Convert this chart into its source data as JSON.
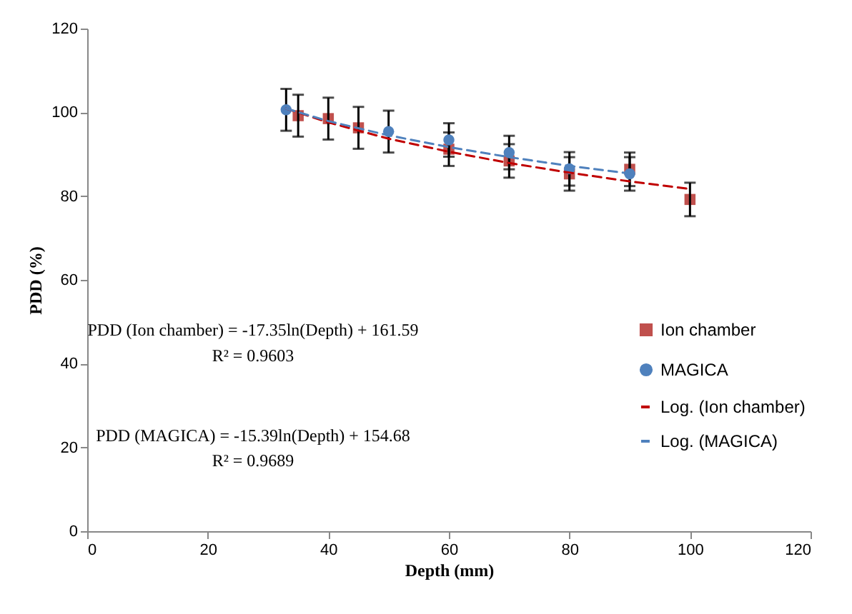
{
  "chart_data": {
    "type": "scatter",
    "xlabel": "Depth (mm)",
    "ylabel": "PDD (%)",
    "xlim": [
      0,
      120
    ],
    "xticks": [
      0,
      20,
      40,
      60,
      80,
      100,
      120
    ],
    "ylim": [
      0,
      120
    ],
    "yticks": [
      0,
      20,
      40,
      60,
      80,
      100,
      120
    ],
    "grid": false,
    "legend": "right",
    "annotations": [
      "PDD (Ion chamber) = -17.35ln(Depth) + 161.59",
      "R² = 0.9603",
      "PDD (MAGICA) = -15.39ln(Depth) + 154.68",
      "R² = 0.9689"
    ],
    "series": [
      {
        "name": "Ion chamber",
        "marker": "square",
        "color": "#c0504d",
        "x": [
          35,
          40,
          45,
          60,
          70,
          80,
          90,
          100
        ],
        "values": [
          99.2,
          98.5,
          96.3,
          91.2,
          88.4,
          85.3,
          86.4,
          79.2
        ],
        "errors": [
          5,
          5,
          5,
          4,
          4,
          4,
          4,
          4
        ]
      },
      {
        "name": "MAGICA",
        "marker": "circle",
        "color": "#4f81bd",
        "x": [
          33,
          50,
          60,
          70,
          80,
          90
        ],
        "values": [
          100.6,
          95.4,
          93.4,
          90.4,
          86.5,
          85.3
        ],
        "errors": [
          5,
          5,
          4,
          4,
          4,
          4
        ]
      },
      {
        "name": "Log. (Ion chamber)",
        "type": "line",
        "line_style": "dashed",
        "color": "#c00000",
        "x": [
          33,
          40,
          50,
          60,
          70,
          80,
          90,
          100
        ],
        "values": [
          100.9,
          97.6,
          93.7,
          90.6,
          87.9,
          85.6,
          83.5,
          81.7
        ]
      },
      {
        "name": "Log. (MAGICA)",
        "type": "line",
        "line_style": "dashed",
        "color": "#4f81bd",
        "x": [
          33,
          40,
          50,
          60,
          70,
          80,
          90
        ],
        "values": [
          100.9,
          97.9,
          94.5,
          91.7,
          89.3,
          87.2,
          85.4
        ]
      }
    ]
  }
}
